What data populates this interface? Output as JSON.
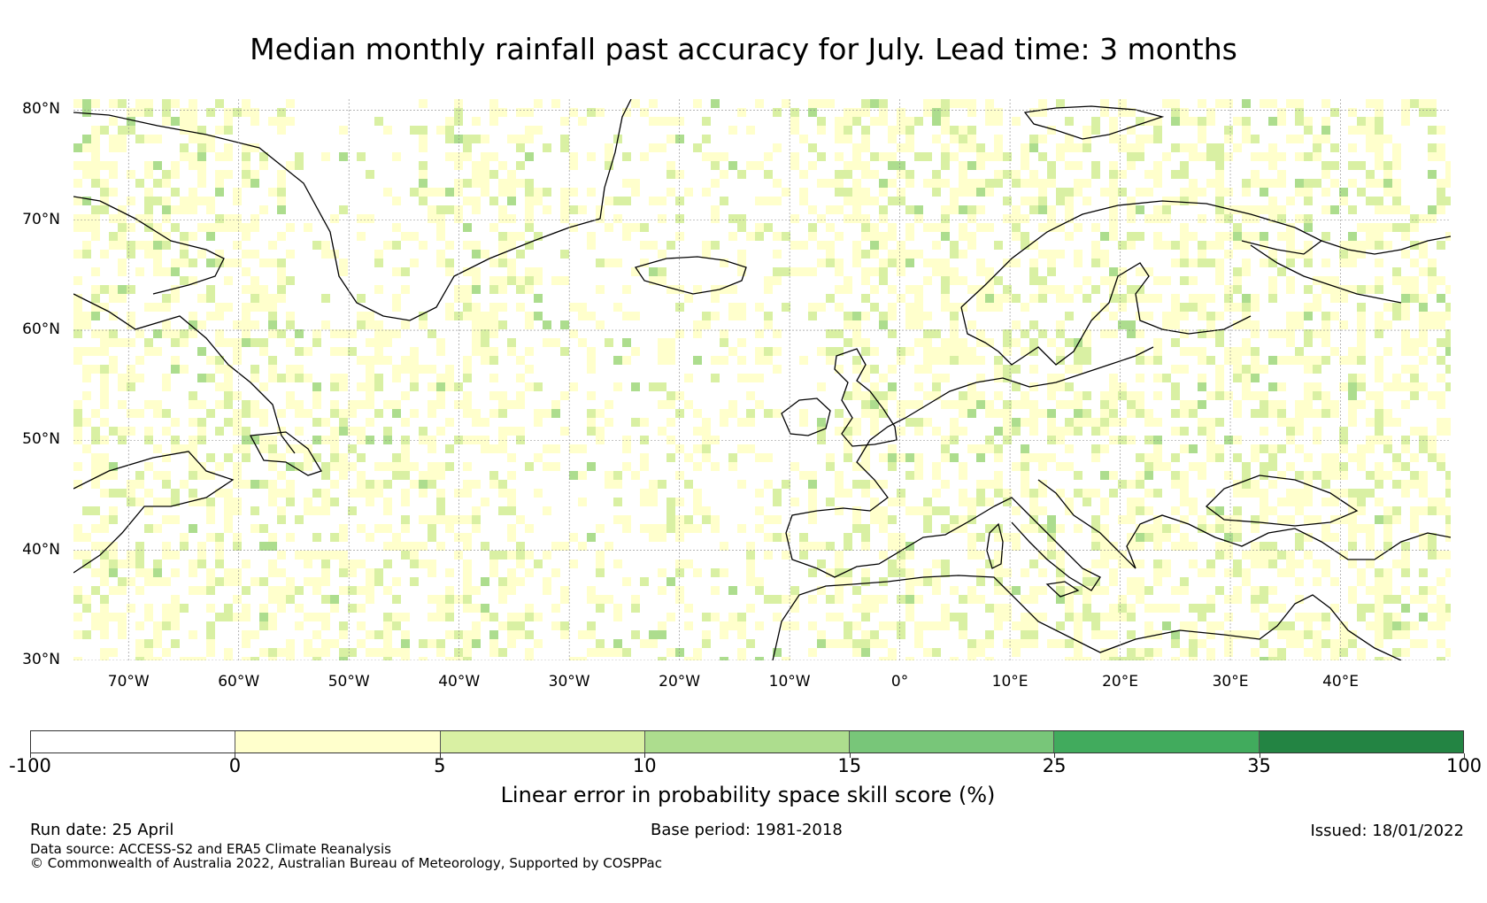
{
  "title": "Median monthly rainfall past accuracy for July. Lead time: 3 months",
  "map": {
    "lon_range": [
      -75,
      50
    ],
    "lat_range": [
      30,
      81
    ],
    "lat_labels": [
      {
        "lat": 80,
        "text": "80°N"
      },
      {
        "lat": 70,
        "text": "70°N"
      },
      {
        "lat": 60,
        "text": "60°N"
      },
      {
        "lat": 50,
        "text": "50°N"
      },
      {
        "lat": 40,
        "text": "40°N"
      },
      {
        "lat": 30,
        "text": "30°N"
      }
    ],
    "lon_labels": [
      {
        "lon": -70,
        "text": "70°W"
      },
      {
        "lon": -60,
        "text": "60°W"
      },
      {
        "lon": -50,
        "text": "50°W"
      },
      {
        "lon": -40,
        "text": "40°W"
      },
      {
        "lon": -30,
        "text": "30°W"
      },
      {
        "lon": -20,
        "text": "20°W"
      },
      {
        "lon": -10,
        "text": "10°W"
      },
      {
        "lon": 0,
        "text": "0°"
      },
      {
        "lon": 10,
        "text": "10°E"
      },
      {
        "lon": 20,
        "text": "20°E"
      },
      {
        "lon": 30,
        "text": "30°E"
      },
      {
        "lon": 40,
        "text": "40°E"
      }
    ],
    "gridlines": true
  },
  "colorbar": {
    "label": "Linear error in probability space skill score (%)",
    "ticks": [
      "-100",
      "0",
      "5",
      "10",
      "15",
      "25",
      "35",
      "100"
    ],
    "colors": [
      "#ffffff",
      "#ffffcc",
      "#d9f0a3",
      "#addd8e",
      "#78c679",
      "#41ab5d",
      "#238443"
    ]
  },
  "footer": {
    "run_date": "Run date: 25 April",
    "base_period": "Base period: 1981-2018",
    "issued": "Issued: 18/01/2022",
    "data_source": "Data source: ACCESS-S2 and ERA5 Climate Reanalysis",
    "copyright": "© Commonwealth of Australia 2022, Australian Bureau of Meteorology, Supported by COSPPac"
  }
}
